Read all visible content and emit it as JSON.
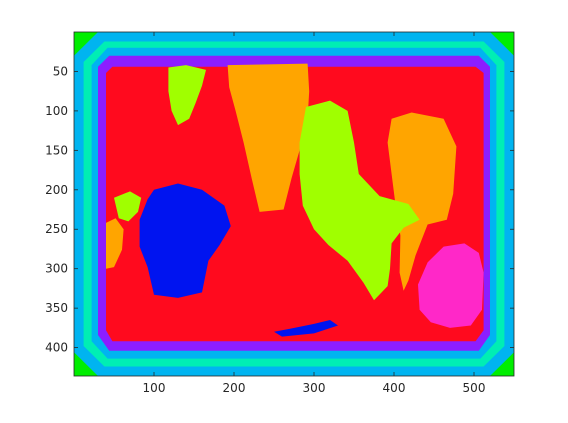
{
  "chart_data": {
    "type": "heatmap",
    "title": "",
    "xlabel": "",
    "ylabel": "",
    "xlim": [
      0,
      550
    ],
    "ylim": [
      436,
      0
    ],
    "y_reversed": true,
    "grid": false,
    "legend": "none",
    "x_ticks": [
      100,
      200,
      300,
      400,
      500
    ],
    "y_ticks": [
      50,
      100,
      150,
      200,
      250,
      300,
      350,
      400
    ],
    "colors": {
      "green": "#00ee00",
      "cyan": "#00b4f0",
      "aqua": "#00eeb4",
      "purple": "#8c1eff",
      "red": "#ff0a1e",
      "orange": "#ffa500",
      "yellow_green": "#a0ff00",
      "blue": "#0014f0",
      "magenta": "#ff28c8"
    },
    "regions": [
      {
        "label": "background",
        "color_key": "green",
        "points": [
          [
            0,
            0
          ],
          [
            550,
            0
          ],
          [
            550,
            436
          ],
          [
            0,
            436
          ]
        ]
      },
      {
        "label": "outer ring",
        "color_key": "cyan",
        "points": [
          [
            30,
            0
          ],
          [
            520,
            0
          ],
          [
            550,
            30
          ],
          [
            550,
            406
          ],
          [
            520,
            436
          ],
          [
            30,
            436
          ],
          [
            0,
            406
          ],
          [
            0,
            30
          ]
        ]
      },
      {
        "label": "aqua ring",
        "color_key": "aqua",
        "points": [
          [
            38,
            12
          ],
          [
            512,
            12
          ],
          [
            538,
            38
          ],
          [
            538,
            398
          ],
          [
            512,
            424
          ],
          [
            38,
            424
          ],
          [
            12,
            398
          ],
          [
            12,
            38
          ]
        ]
      },
      {
        "label": "inner cyan ring",
        "color_key": "cyan",
        "points": [
          [
            42,
            20
          ],
          [
            508,
            20
          ],
          [
            528,
            42
          ],
          [
            528,
            392
          ],
          [
            508,
            414
          ],
          [
            42,
            414
          ],
          [
            22,
            392
          ],
          [
            22,
            42
          ]
        ]
      },
      {
        "label": "purple frame",
        "color_key": "purple",
        "points": [
          [
            44,
            30
          ],
          [
            506,
            30
          ],
          [
            520,
            44
          ],
          [
            520,
            384
          ],
          [
            506,
            404
          ],
          [
            44,
            404
          ],
          [
            30,
            384
          ],
          [
            30,
            44
          ]
        ]
      },
      {
        "label": "red field",
        "color_key": "red",
        "points": [
          [
            48,
            44
          ],
          [
            502,
            44
          ],
          [
            512,
            52
          ],
          [
            512,
            378
          ],
          [
            502,
            392
          ],
          [
            48,
            392
          ],
          [
            40,
            378
          ],
          [
            40,
            52
          ]
        ]
      },
      {
        "label": "orange top center",
        "color_key": "orange",
        "points": [
          [
            192,
            42
          ],
          [
            292,
            40
          ],
          [
            294,
            75
          ],
          [
            292,
            110
          ],
          [
            282,
            150
          ],
          [
            272,
            185
          ],
          [
            262,
            225
          ],
          [
            232,
            228
          ],
          [
            222,
            185
          ],
          [
            212,
            140
          ],
          [
            202,
            100
          ],
          [
            194,
            70
          ]
        ]
      },
      {
        "label": "orange right",
        "color_key": "orange",
        "points": [
          [
            422,
            102
          ],
          [
            462,
            110
          ],
          [
            478,
            145
          ],
          [
            474,
            205
          ],
          [
            466,
            238
          ],
          [
            442,
            244
          ],
          [
            427,
            283
          ],
          [
            418,
            315
          ],
          [
            412,
            328
          ],
          [
            407,
            305
          ],
          [
            408,
            258
          ],
          [
            402,
            220
          ],
          [
            397,
            180
          ],
          [
            392,
            140
          ],
          [
            397,
            110
          ]
        ]
      },
      {
        "label": "orange left",
        "color_key": "orange",
        "points": [
          [
            40,
            242
          ],
          [
            52,
            236
          ],
          [
            62,
            250
          ],
          [
            60,
            276
          ],
          [
            50,
            298
          ],
          [
            40,
            300
          ]
        ]
      },
      {
        "label": "yellow-green top-left",
        "color_key": "yellow_green",
        "points": [
          [
            118,
            45
          ],
          [
            140,
            42
          ],
          [
            165,
            48
          ],
          [
            160,
            68
          ],
          [
            152,
            90
          ],
          [
            144,
            110
          ],
          [
            130,
            118
          ],
          [
            122,
            100
          ],
          [
            118,
            75
          ]
        ]
      },
      {
        "label": "yellow-green left",
        "color_key": "yellow_green",
        "points": [
          [
            50,
            210
          ],
          [
            70,
            202
          ],
          [
            84,
            210
          ],
          [
            80,
            228
          ],
          [
            68,
            240
          ],
          [
            56,
            236
          ]
        ]
      },
      {
        "label": "yellow-green center",
        "color_key": "yellow_green",
        "points": [
          [
            290,
            95
          ],
          [
            320,
            87
          ],
          [
            342,
            100
          ],
          [
            350,
            140
          ],
          [
            356,
            180
          ],
          [
            382,
            208
          ],
          [
            418,
            218
          ],
          [
            432,
            238
          ],
          [
            412,
            248
          ],
          [
            397,
            268
          ],
          [
            395,
            300
          ],
          [
            392,
            322
          ],
          [
            375,
            340
          ],
          [
            362,
            318
          ],
          [
            342,
            290
          ],
          [
            318,
            270
          ],
          [
            300,
            250
          ],
          [
            286,
            220
          ],
          [
            282,
            180
          ],
          [
            282,
            140
          ]
        ]
      },
      {
        "label": "blue blob",
        "color_key": "blue",
        "points": [
          [
            100,
            200
          ],
          [
            130,
            192
          ],
          [
            160,
            200
          ],
          [
            188,
            220
          ],
          [
            196,
            246
          ],
          [
            182,
            270
          ],
          [
            168,
            290
          ],
          [
            160,
            330
          ],
          [
            130,
            337
          ],
          [
            100,
            333
          ],
          [
            92,
            298
          ],
          [
            82,
            272
          ],
          [
            82,
            238
          ],
          [
            92,
            212
          ]
        ]
      },
      {
        "label": "blue bottom",
        "color_key": "blue",
        "points": [
          [
            250,
            380
          ],
          [
            270,
            376
          ],
          [
            300,
            370
          ],
          [
            320,
            365
          ],
          [
            330,
            372
          ],
          [
            300,
            382
          ],
          [
            260,
            386
          ]
        ]
      },
      {
        "label": "magenta blob",
        "color_key": "magenta",
        "points": [
          [
            462,
            272
          ],
          [
            488,
            268
          ],
          [
            506,
            280
          ],
          [
            512,
            305
          ],
          [
            510,
            352
          ],
          [
            496,
            372
          ],
          [
            470,
            375
          ],
          [
            446,
            368
          ],
          [
            432,
            352
          ],
          [
            430,
            320
          ],
          [
            442,
            292
          ]
        ]
      }
    ]
  }
}
